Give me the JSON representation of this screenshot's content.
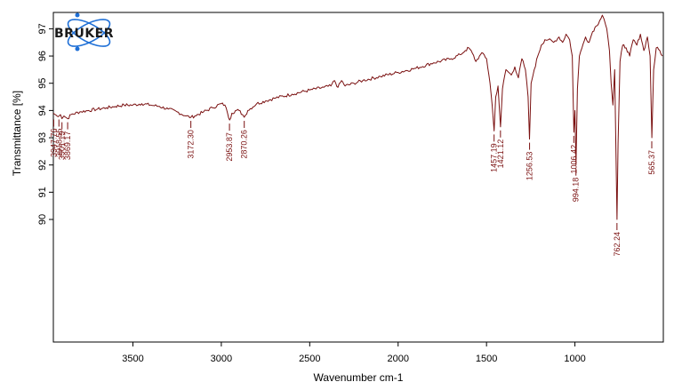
{
  "chart_data": {
    "type": "line",
    "xlabel": "Wavenumber cm-1",
    "ylabel": "Transmittance [%]",
    "xlim": [
      3950,
      500
    ],
    "ylim": [
      85.5,
      97.6
    ],
    "x_reversed": true,
    "x_ticks": [
      3500,
      3000,
      2500,
      2000,
      1500,
      1000
    ],
    "y_ticks": [
      90,
      91,
      92,
      93,
      94,
      95,
      96,
      97
    ],
    "line_color": "#7a1010",
    "grid": false,
    "logo": {
      "text": "BRUKER",
      "color": "#1e6fd6"
    },
    "series": [
      {
        "points": [
          [
            3950,
            93.9
          ],
          [
            3930,
            93.8
          ],
          [
            3910,
            93.85
          ],
          [
            3901,
            93.7
          ],
          [
            3890,
            93.8
          ],
          [
            3869,
            93.7
          ],
          [
            3850,
            93.85
          ],
          [
            3800,
            93.95
          ],
          [
            3750,
            94.0
          ],
          [
            3700,
            94.05
          ],
          [
            3650,
            94.1
          ],
          [
            3600,
            94.15
          ],
          [
            3550,
            94.2
          ],
          [
            3500,
            94.2
          ],
          [
            3450,
            94.25
          ],
          [
            3400,
            94.2
          ],
          [
            3350,
            94.15
          ],
          [
            3300,
            94.05
          ],
          [
            3250,
            93.95
          ],
          [
            3200,
            93.8
          ],
          [
            3172,
            93.75
          ],
          [
            3150,
            93.8
          ],
          [
            3100,
            93.95
          ],
          [
            3050,
            94.1
          ],
          [
            3000,
            94.25
          ],
          [
            2980,
            94.2
          ],
          [
            2965,
            93.9
          ],
          [
            2953,
            93.65
          ],
          [
            2940,
            93.9
          ],
          [
            2920,
            94.0
          ],
          [
            2900,
            94.0
          ],
          [
            2880,
            93.85
          ],
          [
            2870,
            93.75
          ],
          [
            2850,
            94.0
          ],
          [
            2800,
            94.25
          ],
          [
            2750,
            94.35
          ],
          [
            2700,
            94.45
          ],
          [
            2600,
            94.6
          ],
          [
            2500,
            94.75
          ],
          [
            2420,
            94.85
          ],
          [
            2380,
            94.9
          ],
          [
            2360,
            95.1
          ],
          [
            2340,
            94.85
          ],
          [
            2320,
            95.1
          ],
          [
            2300,
            94.9
          ],
          [
            2250,
            95.0
          ],
          [
            2200,
            95.1
          ],
          [
            2100,
            95.25
          ],
          [
            2000,
            95.4
          ],
          [
            1900,
            95.55
          ],
          [
            1800,
            95.75
          ],
          [
            1700,
            95.9
          ],
          [
            1650,
            96.05
          ],
          [
            1620,
            96.2
          ],
          [
            1600,
            96.3
          ],
          [
            1580,
            96.1
          ],
          [
            1560,
            95.8
          ],
          [
            1540,
            96.0
          ],
          [
            1520,
            96.1
          ],
          [
            1500,
            95.9
          ],
          [
            1480,
            95.0
          ],
          [
            1468,
            94.2
          ],
          [
            1457,
            93.25
          ],
          [
            1448,
            94.5
          ],
          [
            1435,
            94.9
          ],
          [
            1421,
            93.4
          ],
          [
            1410,
            94.8
          ],
          [
            1390,
            95.5
          ],
          [
            1360,
            95.3
          ],
          [
            1340,
            95.6
          ],
          [
            1320,
            95.2
          ],
          [
            1300,
            95.9
          ],
          [
            1280,
            95.5
          ],
          [
            1265,
            94.5
          ],
          [
            1257,
            92.95
          ],
          [
            1248,
            95.0
          ],
          [
            1230,
            95.5
          ],
          [
            1210,
            96.0
          ],
          [
            1190,
            96.4
          ],
          [
            1170,
            96.6
          ],
          [
            1150,
            96.6
          ],
          [
            1120,
            96.5
          ],
          [
            1090,
            96.7
          ],
          [
            1070,
            96.5
          ],
          [
            1050,
            96.8
          ],
          [
            1030,
            96.6
          ],
          [
            1015,
            96.0
          ],
          [
            1006,
            93.2
          ],
          [
            1000,
            94.0
          ],
          [
            994,
            92.0
          ],
          [
            986,
            94.8
          ],
          [
            975,
            96.0
          ],
          [
            960,
            96.3
          ],
          [
            940,
            96.7
          ],
          [
            920,
            96.5
          ],
          [
            900,
            96.9
          ],
          [
            880,
            97.1
          ],
          [
            860,
            97.3
          ],
          [
            845,
            97.5
          ],
          [
            835,
            97.35
          ],
          [
            820,
            97.0
          ],
          [
            805,
            96.2
          ],
          [
            795,
            95.0
          ],
          [
            785,
            94.2
          ],
          [
            775,
            95.5
          ],
          [
            768,
            92.5
          ],
          [
            762,
            90.0
          ],
          [
            756,
            92.8
          ],
          [
            745,
            95.8
          ],
          [
            730,
            96.4
          ],
          [
            710,
            96.3
          ],
          [
            690,
            96.0
          ],
          [
            670,
            96.6
          ],
          [
            650,
            96.4
          ],
          [
            630,
            96.8
          ],
          [
            610,
            96.2
          ],
          [
            590,
            96.7
          ],
          [
            575,
            96.0
          ],
          [
            565,
            93.0
          ],
          [
            555,
            95.5
          ],
          [
            540,
            96.3
          ],
          [
            520,
            96.2
          ],
          [
            505,
            96.0
          ]
        ]
      }
    ],
    "peaks": [
      {
        "x": 3947.76,
        "y": 93.8,
        "label": "3947.76"
      },
      {
        "x": 3918.55,
        "y": 93.8,
        "label": "3918.55"
      },
      {
        "x": 3901.19,
        "y": 93.7,
        "label": "3901.19"
      },
      {
        "x": 3869.17,
        "y": 93.7,
        "label": "3869.17"
      },
      {
        "x": 3172.3,
        "y": 93.75,
        "label": "3172.30"
      },
      {
        "x": 2953.87,
        "y": 93.65,
        "label": "2953.87"
      },
      {
        "x": 2870.26,
        "y": 93.75,
        "label": "2870.26"
      },
      {
        "x": 1457.19,
        "y": 93.25,
        "label": "1457.19"
      },
      {
        "x": 1421.12,
        "y": 93.4,
        "label": "1421.12"
      },
      {
        "x": 1256.53,
        "y": 92.95,
        "label": "1256.53"
      },
      {
        "x": 1006.42,
        "y": 93.2,
        "label": "1006.42"
      },
      {
        "x": 994.18,
        "y": 92.0,
        "label": "994.18"
      },
      {
        "x": 762.24,
        "y": 90.0,
        "label": "762.24"
      },
      {
        "x": 565.37,
        "y": 93.0,
        "label": "565.37"
      }
    ]
  }
}
